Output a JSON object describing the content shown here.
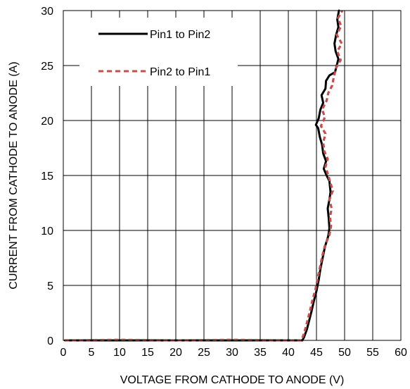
{
  "chart_data": {
    "type": "line",
    "xlabel": "VOLTAGE FROM CATHODE TO ANODE (V)",
    "ylabel": "CURRENT FROM CATHODE TO ANODE (A)",
    "xlim": [
      0,
      60
    ],
    "ylim": [
      0,
      30
    ],
    "xticks": [
      "0",
      "5",
      "10",
      "15",
      "20",
      "25",
      "30",
      "35",
      "40",
      "45",
      "50",
      "55",
      "60"
    ],
    "yticks": [
      "0",
      "5",
      "10",
      "15",
      "20",
      "25",
      "30"
    ],
    "grid": true,
    "legend_position": "top-left",
    "series": [
      {
        "name": "Pin1 to Pin2",
        "color": "#000000",
        "style": "solid",
        "points": [
          [
            0.3,
            0
          ],
          [
            10,
            0
          ],
          [
            20,
            0
          ],
          [
            30,
            0
          ],
          [
            40,
            0
          ],
          [
            42.5,
            0
          ],
          [
            42.8,
            0.3
          ],
          [
            43.3,
            1
          ],
          [
            43.7,
            1.8
          ],
          [
            44.1,
            2.6
          ],
          [
            44.5,
            3.5
          ],
          [
            45,
            4.5
          ],
          [
            45.4,
            5.5
          ],
          [
            45.7,
            6.5
          ],
          [
            46.1,
            7.5
          ],
          [
            46.5,
            8.5
          ],
          [
            47.1,
            9.5
          ],
          [
            47.3,
            10.2
          ],
          [
            47.2,
            11
          ],
          [
            47,
            12
          ],
          [
            47.3,
            12.8
          ],
          [
            47.5,
            13.5
          ],
          [
            47.3,
            14.5
          ],
          [
            46.8,
            15
          ],
          [
            46.3,
            15.6
          ],
          [
            46.7,
            16.3
          ],
          [
            46.2,
            17
          ],
          [
            46,
            17.8
          ],
          [
            45.6,
            18.5
          ],
          [
            45.3,
            19.3
          ],
          [
            44.9,
            19.6
          ],
          [
            45.4,
            20.2
          ],
          [
            45.7,
            21
          ],
          [
            46.2,
            21.6
          ],
          [
            45.9,
            22.3
          ],
          [
            46.6,
            22.9
          ],
          [
            46.7,
            23.6
          ],
          [
            47.3,
            24.1
          ],
          [
            48.3,
            24.4
          ],
          [
            48.6,
            25
          ],
          [
            48.9,
            25.6
          ],
          [
            48.4,
            26.3
          ],
          [
            48.2,
            27
          ],
          [
            48.5,
            27.8
          ],
          [
            48.9,
            28.5
          ],
          [
            48.7,
            29.2
          ],
          [
            49,
            30
          ]
        ]
      },
      {
        "name": "Pin2 to Pin1",
        "color": "#c0504d",
        "style": "dashed",
        "points": [
          [
            0.3,
            0
          ],
          [
            10,
            0.05
          ],
          [
            20,
            0
          ],
          [
            30,
            0.05
          ],
          [
            40,
            0
          ],
          [
            42.3,
            0
          ],
          [
            42.7,
            0.5
          ],
          [
            43.1,
            1.2
          ],
          [
            43.5,
            2
          ],
          [
            43.9,
            2.8
          ],
          [
            44.3,
            3.7
          ],
          [
            44.8,
            4.6
          ],
          [
            45.2,
            5.6
          ],
          [
            45.6,
            6.6
          ],
          [
            46,
            7.6
          ],
          [
            46.5,
            8.6
          ],
          [
            47.3,
            9.6
          ],
          [
            47.6,
            10.4
          ],
          [
            47.4,
            11.2
          ],
          [
            47.7,
            12
          ],
          [
            47.3,
            12.8
          ],
          [
            47.9,
            13.6
          ],
          [
            47.5,
            14.3
          ],
          [
            47.1,
            15
          ],
          [
            46.6,
            15.8
          ],
          [
            47,
            16.5
          ],
          [
            46.4,
            17.2
          ],
          [
            46.2,
            18
          ],
          [
            46.6,
            18.8
          ],
          [
            45.8,
            19.5
          ],
          [
            46.5,
            20.3
          ],
          [
            46,
            21
          ],
          [
            46.8,
            21.8
          ],
          [
            47.1,
            22.5
          ],
          [
            47.8,
            23.2
          ],
          [
            48.1,
            24
          ],
          [
            48.5,
            24.8
          ],
          [
            49.3,
            25.5
          ],
          [
            48.7,
            26.3
          ],
          [
            49.5,
            27
          ],
          [
            48.6,
            27.8
          ],
          [
            49.4,
            28.6
          ],
          [
            48.8,
            29.3
          ],
          [
            49.6,
            30
          ]
        ]
      }
    ]
  }
}
